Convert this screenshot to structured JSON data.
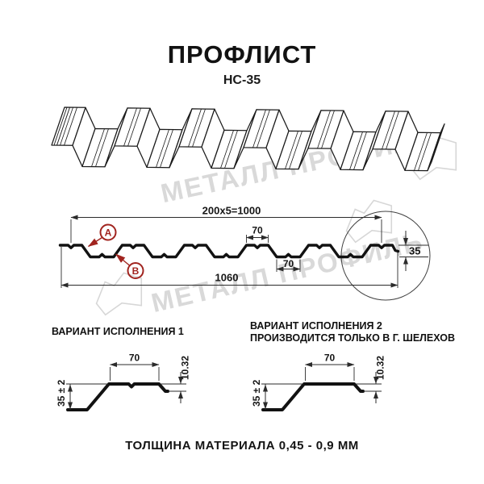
{
  "title": "ПРОФЛИСТ",
  "subtitle": "НС-35",
  "cross_section": {
    "dim_top": "200x5=1000",
    "dim_total_width": "1060",
    "dim_height": "35",
    "dim_crest_width": "70",
    "dim_valley_width": "70",
    "label_a": "А",
    "label_b": "В"
  },
  "variants": [
    {
      "title": "ВАРИАНТ ИСПОЛНЕНИЯ 1",
      "subtitle": "",
      "dim_top": "70",
      "dim_lip": "10.32",
      "dim_height": "35 ± 2",
      "notch": true
    },
    {
      "title": "ВАРИАНТ ИСПОЛНЕНИЯ 2",
      "subtitle": "ПРОИЗВОДИТСЯ ТОЛЬКО В Г. ШЕЛЕХОВ",
      "dim_top": "70",
      "dim_lip": "10.32",
      "dim_height": "35 ± 2",
      "notch": false
    }
  ],
  "footer": "ТОЛЩИНА МАТЕРИАЛА 0,45 - 0,9 ММ",
  "watermark": {
    "text": "МЕТАЛЛ ПРОФИЛЬ"
  },
  "colors": {
    "callout": "#a1241f",
    "line": "#2b2b2b",
    "profile": "#121212",
    "watermark": "#d9d9d9"
  }
}
